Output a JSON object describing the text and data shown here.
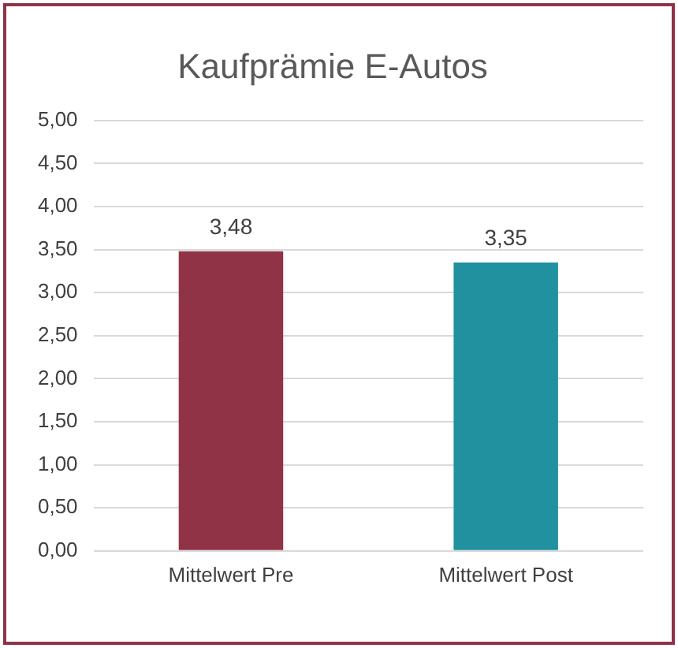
{
  "chart_data": {
    "type": "bar",
    "title": "Kaufprämie E-Autos",
    "categories": [
      "Mittelwert Pre",
      "Mittelwert Post"
    ],
    "values": [
      3.48,
      3.35
    ],
    "colors": [
      "#913346",
      "#2191a0"
    ],
    "value_labels": [
      "3,48",
      "3,35"
    ],
    "ylim": [
      0,
      5
    ],
    "yticks": [
      {
        "value": 0,
        "label": "0,00"
      },
      {
        "value": 0.5,
        "label": "0,50"
      },
      {
        "value": 1,
        "label": "1,00"
      },
      {
        "value": 1.5,
        "label": "1,50"
      },
      {
        "value": 2,
        "label": "2,00"
      },
      {
        "value": 2.5,
        "label": "2,50"
      },
      {
        "value": 3,
        "label": "3,00"
      },
      {
        "value": 3.5,
        "label": "3,50"
      },
      {
        "value": 4,
        "label": "4,00"
      },
      {
        "value": 4.5,
        "label": "4,50"
      },
      {
        "value": 5,
        "label": "5,00"
      }
    ],
    "grid": "y",
    "legend": false
  }
}
